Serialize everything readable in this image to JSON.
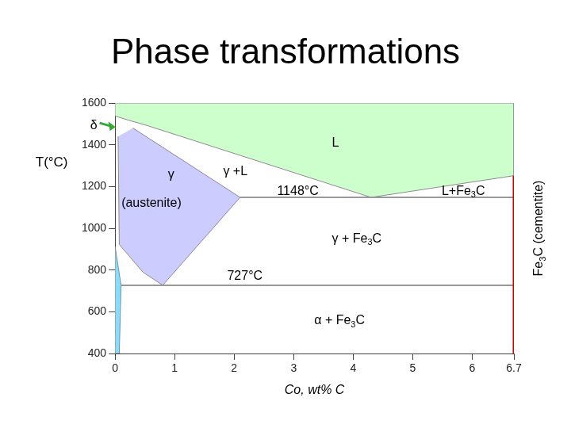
{
  "chart_data": {
    "type": "line",
    "title": "Phase transformations",
    "x_label": "Co, wt% C",
    "y_label": "T(°C)",
    "side_label": "Fe3C (cementite)",
    "xlim": [
      0,
      6.7
    ],
    "xticks": [
      0,
      1,
      2,
      3,
      4,
      5,
      6,
      6.7
    ],
    "ylim": [
      400,
      1600
    ],
    "yticks": [
      400,
      600,
      800,
      1000,
      1200,
      1400,
      1600
    ],
    "grid": false,
    "series": [
      {
        "type": "area",
        "color": "#ccffcc",
        "x": [
          0,
          6.7,
          6.7,
          4.3,
          0.53,
          0.2,
          0
        ],
        "values": [
          1600,
          1600,
          1252,
          1148,
          1493,
          1520,
          1538
        ]
      },
      {
        "type": "area",
        "color": "#ccccff",
        "x": [
          0.3,
          2.1,
          0.8,
          0.47,
          0.07,
          0.05
        ],
        "values": [
          1480,
          1148,
          727,
          789,
          922,
          1440
        ]
      },
      {
        "type": "area",
        "color": "#88ddff",
        "x": [
          0,
          0.1,
          0.07,
          0
        ],
        "values": [
          912,
          727,
          400,
          400
        ]
      },
      {
        "type": "line",
        "color": "#999999",
        "x": [
          2.1,
          6.7
        ],
        "values": [
          1148,
          1148
        ]
      },
      {
        "type": "line",
        "color": "#999999",
        "x": [
          0.1,
          6.7
        ],
        "values": [
          727,
          727
        ]
      },
      {
        "type": "line",
        "color": "#cc0000",
        "x": [
          6.7,
          6.7
        ],
        "values": [
          400,
          1252
        ]
      }
    ],
    "annotations": [
      {
        "text": "δ",
        "x": -0.36,
        "y": 1493,
        "marker": "arrow"
      },
      {
        "text": "L",
        "x": 3.7,
        "y": 1406
      },
      {
        "text": "γ",
        "x": 0.94,
        "y": 1257
      },
      {
        "text": "(austenite)",
        "x": 0.61,
        "y": 1120
      },
      {
        "text": "γ +L",
        "x": 2.02,
        "y": 1272
      },
      {
        "text": "1148°C",
        "x": 3.07,
        "y": 1177
      },
      {
        "text": "L+Fe3C",
        "x": 5.85,
        "y": 1177
      },
      {
        "text": "γ + Fe3C",
        "x": 4.06,
        "y": 949
      },
      {
        "text": "727°C",
        "x": 2.18,
        "y": 770
      },
      {
        "text": "α + Fe3C",
        "x": 3.77,
        "y": 556
      }
    ]
  }
}
